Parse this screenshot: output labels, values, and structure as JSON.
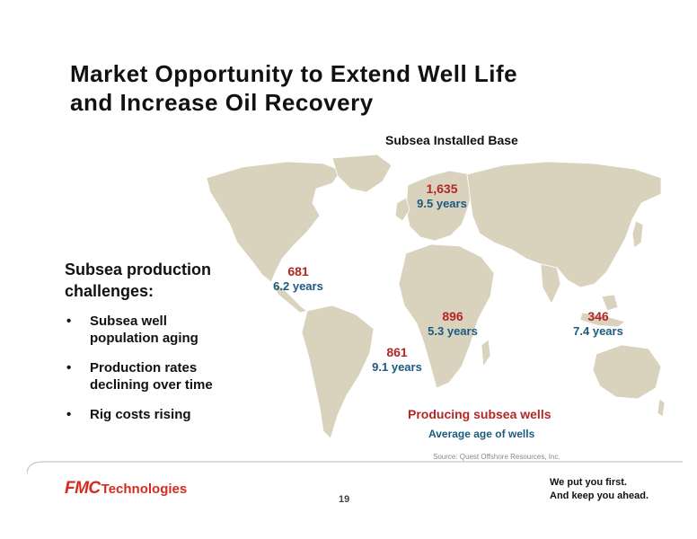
{
  "slide": {
    "title_line1": "Market Opportunity to Extend Well Life",
    "title_line2": "and Increase Oil Recovery",
    "map_caption": "Subsea Installed Base",
    "challenges_heading_line1": "Subsea production",
    "challenges_heading_line2": "challenges:",
    "bullets": [
      {
        "line1": "Subsea well",
        "line2": "population aging"
      },
      {
        "line1": "Production rates",
        "line2": "declining over time"
      },
      {
        "line1": "Rig costs rising",
        "line2": ""
      }
    ],
    "bullet_symbol": "•",
    "regions": [
      {
        "name": "north-sea",
        "count": "1,635",
        "age": "9.5 years"
      },
      {
        "name": "gulf-of-mexico",
        "count": "681",
        "age": "6.2 years"
      },
      {
        "name": "west-africa",
        "count": "896",
        "age": "5.3 years"
      },
      {
        "name": "asia-pacific",
        "count": "346",
        "age": "7.4 years"
      },
      {
        "name": "brazil",
        "count": "861",
        "age": "9.1 years"
      }
    ],
    "legend_count": "Producing subsea wells",
    "legend_age": "Average age of wells",
    "source": "Source: Quest Offshore Resources, Inc.",
    "page_number": "19"
  },
  "footer": {
    "logo_mark": "FMC",
    "logo_word": "Technologies",
    "tagline_line1": "We put you first.",
    "tagline_line2": "And keep you ahead."
  },
  "colors": {
    "count": "#b42626",
    "age": "#1b5a80",
    "land": "#d9d2bd",
    "brand": "#d42b1e"
  }
}
